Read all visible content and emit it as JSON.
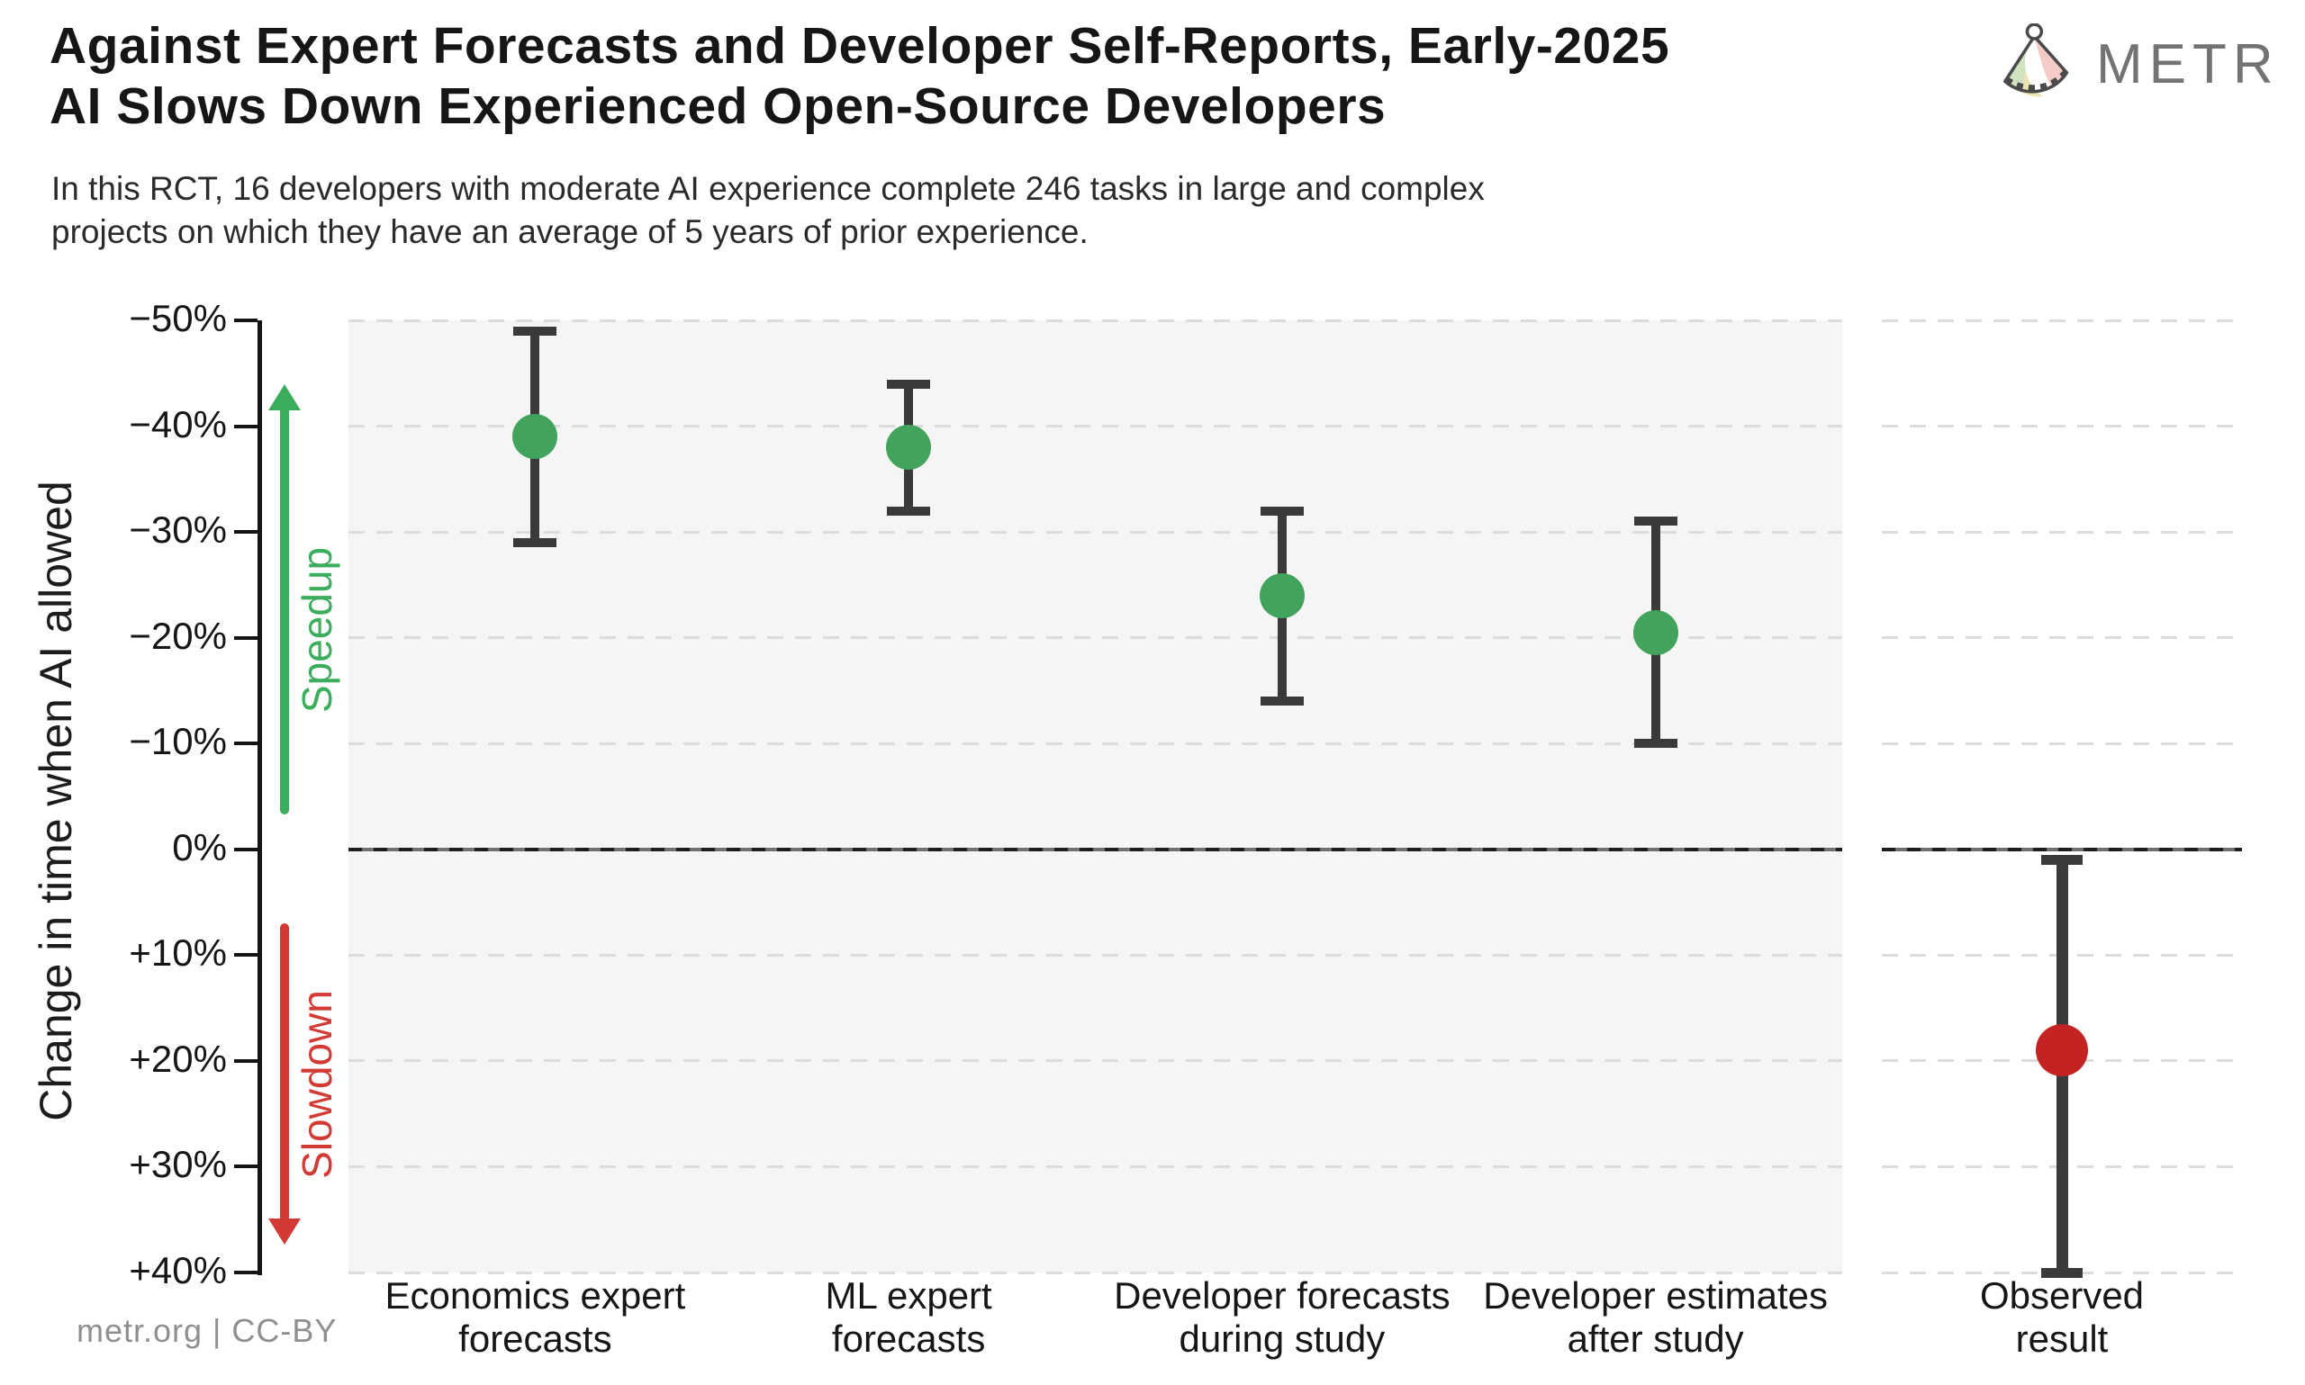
{
  "header": {
    "title": "Against Expert Forecasts and Developer Self-Reports, Early-2025\nAI Slows Down Experienced Open-Source Developers",
    "subtitle": "In this RCT, 16 developers with moderate AI experience complete 246 tasks in large and complex\nprojects on which they have an average of 5 years of prior experience.",
    "brand": "METR"
  },
  "footer": {
    "credit": "metr.org  |  CC-BY"
  },
  "colors": {
    "dot_green": "#41A35C",
    "dot_red": "#C42323",
    "arrow_green": "#3BAD5C",
    "arrow_red": "#D23B35",
    "error_bar": "#3a3a3a",
    "panel_bg": "#f5f5f6",
    "gridline": "#dcdcdc",
    "zero_line_solid": "#707070",
    "zero_line_dash": "#1e1e1e",
    "axis": "#141414",
    "brand_gray": "#737373"
  },
  "chart_data": {
    "type": "scatter",
    "title": "Against Expert Forecasts and Developer Self-Reports, Early-2025 AI Slows Down Experienced Open-Source Developers",
    "subtitle": "In this RCT, 16 developers with moderate AI experience complete 246 tasks in large and complex projects on which they have an average of 5 years of prior experience.",
    "xlabel": "",
    "ylabel": "Change in time when AI allowed",
    "grid": true,
    "legend_position": "none",
    "y_axis": {
      "label": "Change in time when AI allowed",
      "ticks": [
        "−50%",
        "−40%",
        "−30%",
        "−20%",
        "−10%",
        "0%",
        "+10%",
        "+20%",
        "+30%",
        "+40%"
      ],
      "tick_values": [
        -50,
        -40,
        -30,
        -20,
        -10,
        0,
        10,
        20,
        30,
        40
      ],
      "range": [
        -50,
        40
      ],
      "inverted_meaning": "negative = speedup (faster with AI), positive = slowdown"
    },
    "categories": [
      "Economics expert\nforecasts",
      "ML expert\nforecasts",
      "Developer forecasts\nduring study",
      "Developer estimates\nafter study",
      "Observed\nresult"
    ],
    "points": [
      {
        "category": "Economics expert forecasts",
        "mean": -39,
        "ci_low": -49,
        "ci_high": -29,
        "color": "#41A35C",
        "panel": "main"
      },
      {
        "category": "ML expert forecasts",
        "mean": -38,
        "ci_low": -44,
        "ci_high": -32,
        "color": "#41A35C",
        "panel": "main"
      },
      {
        "category": "Developer forecasts during study",
        "mean": -24,
        "ci_low": -32,
        "ci_high": -14,
        "color": "#41A35C",
        "panel": "main"
      },
      {
        "category": "Developer estimates after study",
        "mean": -20.5,
        "ci_low": -31,
        "ci_high": -10,
        "color": "#41A35C",
        "panel": "main"
      },
      {
        "category": "Observed result",
        "mean": 19,
        "ci_low": 1,
        "ci_high": 40,
        "color": "#C42323",
        "panel": "observed"
      }
    ],
    "zero_line_pct": 0,
    "annotations": {
      "speedup": {
        "label": "Speedup",
        "color": "#3BAD5C",
        "tip_pct": -44,
        "tail_pct": -3.3,
        "direction": "up"
      },
      "slowdown": {
        "label": "Slowdown",
        "color": "#D23B35",
        "tip_pct": 37.4,
        "tail_pct": 7,
        "direction": "down"
      }
    }
  }
}
